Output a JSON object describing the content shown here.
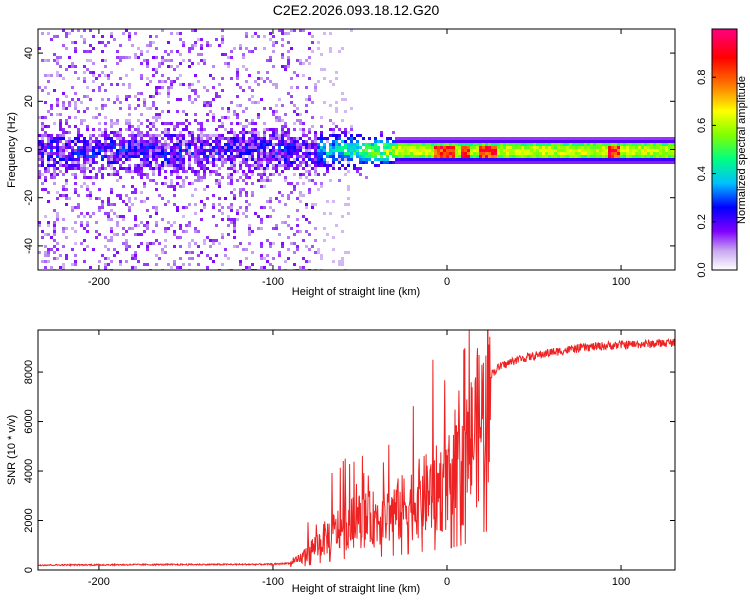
{
  "title": "C2E2.2026.093.18.12.G20",
  "chart_data": [
    {
      "type": "heatmap",
      "name": "spectrogram",
      "xlabel": "Height of straight line (km)",
      "ylabel": "Frequency (Hz)",
      "xlim": [
        -235,
        131
      ],
      "ylim": [
        -50,
        50
      ],
      "xticks": [
        -200,
        -100,
        0,
        100
      ],
      "xtick_labels": [
        "-200",
        "-100",
        "0",
        "100"
      ],
      "yticks": [
        -40,
        -20,
        0,
        20,
        40
      ],
      "ytick_labels": [
        "-40",
        "-20",
        "0",
        "20",
        "40"
      ],
      "colorbar": {
        "label": "Normalized spectral amplitude",
        "range": [
          0,
          1
        ],
        "ticks": [
          0.0,
          0.2,
          0.4,
          0.6,
          0.8
        ],
        "tick_labels": [
          "0.0",
          "0.2",
          "0.4",
          "0.6",
          "0.8"
        ],
        "colors": [
          "#ffffff",
          "#c8a8f0",
          "#8000ff",
          "#0000ff",
          "#00c0ff",
          "#00ff80",
          "#80ff00",
          "#ffff00",
          "#ff8000",
          "#ff0000",
          "#ff0080"
        ]
      },
      "description_points": {
        "noise_region_x": [
          -235,
          -75
        ],
        "signal_center_freq": 0,
        "signal_bandwidth_hz": [
          6,
          14
        ],
        "strong_peaks_x": [
          -5,
          0,
          10,
          20,
          25,
          95
        ]
      }
    },
    {
      "type": "line",
      "name": "snr",
      "xlabel": "Height of straight line (km)",
      "ylabel": "SNR (10 * v/v)",
      "xlim": [
        -235,
        131
      ],
      "ylim": [
        0,
        9700
      ],
      "xticks": [
        -200,
        -100,
        0,
        100
      ],
      "xtick_labels": [
        "-200",
        "-100",
        "0",
        "100"
      ],
      "yticks": [
        0,
        2000,
        4000,
        6000,
        8000
      ],
      "ytick_labels": [
        "0",
        "2000",
        "4000",
        "6000",
        "8000"
      ],
      "color": "#ee2222",
      "x": [
        -235,
        -200,
        -150,
        -100,
        -90,
        -85,
        -80,
        -70,
        -60,
        -50,
        -40,
        -30,
        -20,
        -10,
        0,
        10,
        15,
        20,
        30,
        40,
        60,
        80,
        100,
        120,
        131
      ],
      "y": [
        200,
        210,
        220,
        230,
        280,
        500,
        900,
        1600,
        2200,
        2500,
        2600,
        2900,
        3400,
        3900,
        4300,
        5100,
        6800,
        7600,
        8200,
        8500,
        8800,
        9000,
        9100,
        9150,
        9200
      ]
    }
  ]
}
